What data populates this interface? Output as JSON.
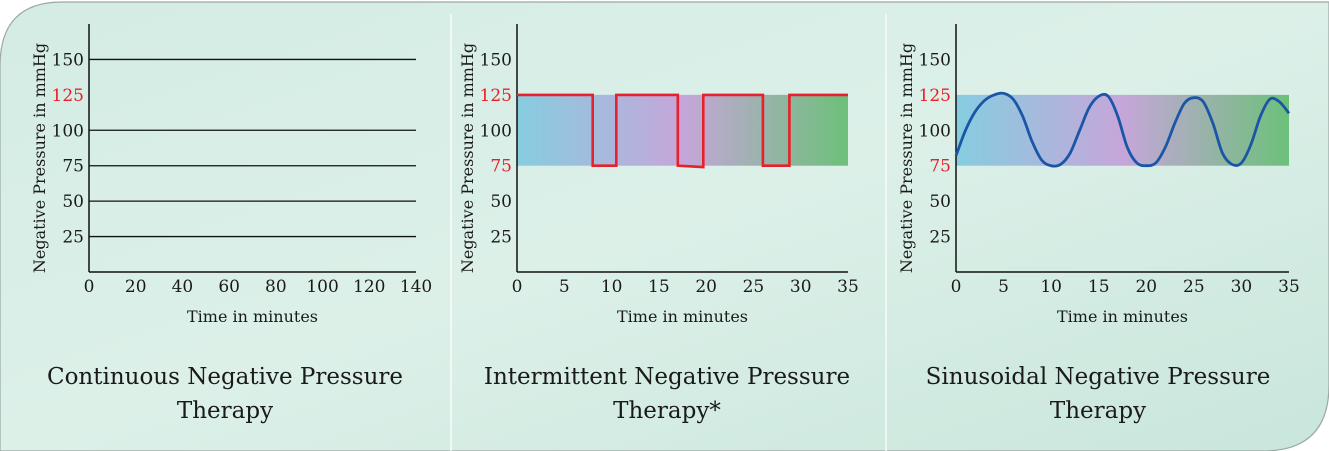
{
  "chart_data": [
    {
      "type": "line",
      "title": "Continuous Negative Pressure Therapy",
      "title_lines": [
        "Continuous Negative Pressure",
        "Therapy"
      ],
      "xlabel": "Time in minutes",
      "ylabel": "Negative Pressure in mmHg",
      "xlim": [
        0,
        140
      ],
      "ylim": [
        0,
        175
      ],
      "x_ticks": [
        "0",
        "20",
        "40",
        "60",
        "80",
        "100",
        "120",
        "140"
      ],
      "y_ticks": [
        "25",
        "50",
        "75",
        "100",
        "125",
        "150"
      ],
      "highlight_ticks": [
        "125"
      ],
      "grid": true,
      "series": [
        {
          "x": [
            0,
            140
          ],
          "y": [
            125,
            125
          ]
        }
      ]
    },
    {
      "type": "line",
      "title": "Intermittent Negative Pressure Therapy*",
      "title_lines": [
        "Intermittent Negative Pressure",
        "Therapy*"
      ],
      "xlabel": "Time in minutes",
      "ylabel": "Negative Pressure in mmHg",
      "xlim": [
        0,
        35
      ],
      "ylim": [
        0,
        175
      ],
      "x_ticks": [
        "0",
        "5",
        "10",
        "15",
        "20",
        "25",
        "30",
        "35"
      ],
      "y_ticks": [
        "25",
        "50",
        "75",
        "100",
        "125",
        "150"
      ],
      "highlight_ticks": [
        "75",
        "125"
      ],
      "grid": false,
      "band": [
        75,
        125
      ],
      "series": [
        {
          "x": [
            0,
            8.0,
            8.0,
            10.5,
            10.5,
            17.0,
            17.0,
            19.7,
            19.7,
            26.0,
            26.0,
            28.8,
            28.8,
            35
          ],
          "y": [
            125,
            125,
            75,
            75,
            125,
            125,
            75,
            74,
            125,
            125,
            75,
            75,
            125,
            125
          ]
        }
      ]
    },
    {
      "type": "line",
      "title": "Sinusoidal Negative Pressure Therapy",
      "title_lines": [
        "Sinusoidal Negative Pressure",
        "Therapy"
      ],
      "xlabel": "Time in minutes",
      "ylabel": "Negative Pressure in mmHg",
      "xlim": [
        0,
        35
      ],
      "ylim": [
        0,
        175
      ],
      "x_ticks": [
        "0",
        "5",
        "10",
        "15",
        "20",
        "25",
        "30",
        "35"
      ],
      "y_ticks": [
        "25",
        "50",
        "75",
        "100",
        "125",
        "150"
      ],
      "highlight_ticks": [
        "75",
        "125"
      ],
      "grid": false,
      "band": [
        75,
        125
      ],
      "series": [
        {
          "x": [
            0,
            1,
            2,
            3,
            4,
            5,
            6,
            7,
            8,
            9,
            10,
            11,
            12,
            13,
            14,
            15,
            16,
            17,
            18,
            19,
            20,
            21,
            22,
            23,
            24,
            25,
            26,
            27,
            28,
            29,
            30,
            31,
            32,
            33,
            34,
            35
          ],
          "y": [
            82,
            100,
            113,
            121,
            125,
            126,
            122,
            110,
            92,
            79,
            75,
            76,
            84,
            100,
            116,
            124,
            124,
            110,
            88,
            77,
            75,
            77,
            88,
            105,
            119,
            123,
            120,
            105,
            84,
            76,
            77,
            90,
            110,
            122,
            120,
            112
          ]
        }
      ]
    }
  ]
}
